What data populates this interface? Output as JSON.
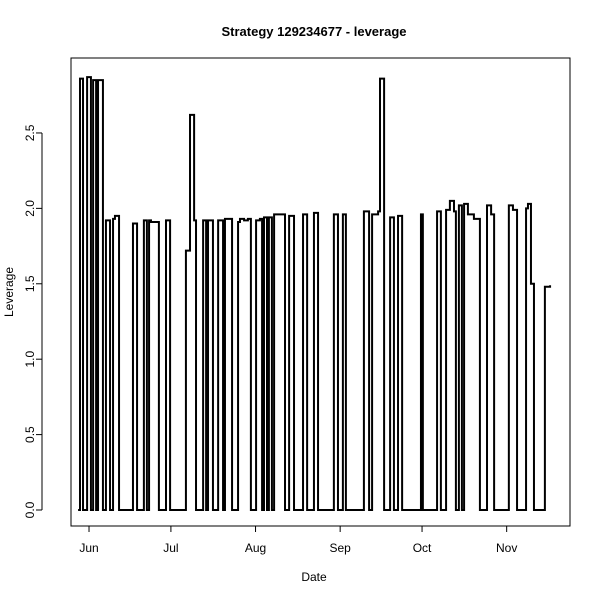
{
  "chart_data": {
    "type": "step",
    "title": "Strategy 129234677 - leverage",
    "x_label": "Date",
    "y_label": "Leverage",
    "color": "#000000",
    "x": [
      -4.0,
      -3.3,
      -2.2,
      -0.7,
      0.7,
      1.5,
      2.6,
      3.3,
      5.1,
      6.2,
      7.7,
      8.8,
      9.5,
      11.0,
      16.1,
      17.6,
      20.1,
      21.2,
      22.0,
      22.7,
      25.6,
      28.2,
      29.7,
      35.5,
      37.0,
      38.5,
      39.2,
      41.8,
      42.9,
      43.6,
      45.4,
      47.3,
      49.1,
      49.8,
      52.4,
      54.6,
      55.3,
      56.8,
      58.2,
      59.3,
      61.2,
      62.6,
      63.4,
      64.1,
      65.2,
      65.9,
      67.0,
      67.8,
      71.8,
      73.3,
      75.1,
      78.4,
      79.9,
      82.4,
      83.9,
      89.7,
      91.2,
      93.0,
      94.1,
      100.7,
      102.6,
      103.7,
      105.9,
      106.6,
      108.1,
      110.3,
      111.7,
      113.2,
      114.7,
      121.6,
      122.3,
      127.5,
      128.9,
      130.8,
      132.2,
      133.7,
      134.4,
      135.5,
      136.6,
      137.4,
      138.8,
      141.0,
      143.2,
      145.8,
      147.3,
      148.4,
      153.8,
      155.3,
      156.8,
      160.1,
      160.8,
      161.9,
      163.0,
      167.0,
      168.9
    ],
    "values": [
      0,
      2.86,
      0,
      2.87,
      0,
      2.85,
      0,
      2.85,
      0,
      1.92,
      0,
      1.93,
      1.95,
      0,
      1.9,
      0,
      1.92,
      0,
      1.92,
      1.91,
      0,
      1.92,
      0,
      1.72,
      2.62,
      1.92,
      0,
      1.92,
      0,
      1.92,
      0,
      1.92,
      0,
      1.93,
      0,
      1.91,
      1.93,
      1.92,
      1.93,
      0,
      1.92,
      1.93,
      0,
      1.94,
      0,
      1.94,
      0,
      1.96,
      0,
      1.95,
      0,
      1.96,
      0,
      1.97,
      0,
      1.96,
      0,
      1.96,
      0,
      1.98,
      0,
      1.96,
      1.98,
      2.86,
      0,
      1.94,
      0,
      1.95,
      0,
      1.96,
      0,
      1.98,
      0,
      1.99,
      2.05,
      1.98,
      0,
      2.02,
      0,
      2.03,
      1.96,
      1.93,
      0,
      2.02,
      1.96,
      0,
      2.02,
      1.99,
      0,
      2.0,
      2.03,
      1.5,
      0,
      1.48,
      1.49
    ],
    "xlim": [
      -6.6,
      176.2
    ],
    "xticks": [
      {
        "value": 0,
        "label": "Jun"
      },
      {
        "value": 30,
        "label": "Jul"
      },
      {
        "value": 61,
        "label": "Aug"
      },
      {
        "value": 92,
        "label": "Sep"
      },
      {
        "value": 122,
        "label": "Oct"
      },
      {
        "value": 153,
        "label": "Nov"
      }
    ],
    "ylim": [
      -0.106,
      2.997
    ],
    "yticks": [
      {
        "value": 0,
        "label": "0.0"
      },
      0.5,
      {
        "value": 1,
        "label": "1.0"
      },
      1.5,
      {
        "value": 2,
        "label": "2.0"
      },
      2.5
    ]
  }
}
